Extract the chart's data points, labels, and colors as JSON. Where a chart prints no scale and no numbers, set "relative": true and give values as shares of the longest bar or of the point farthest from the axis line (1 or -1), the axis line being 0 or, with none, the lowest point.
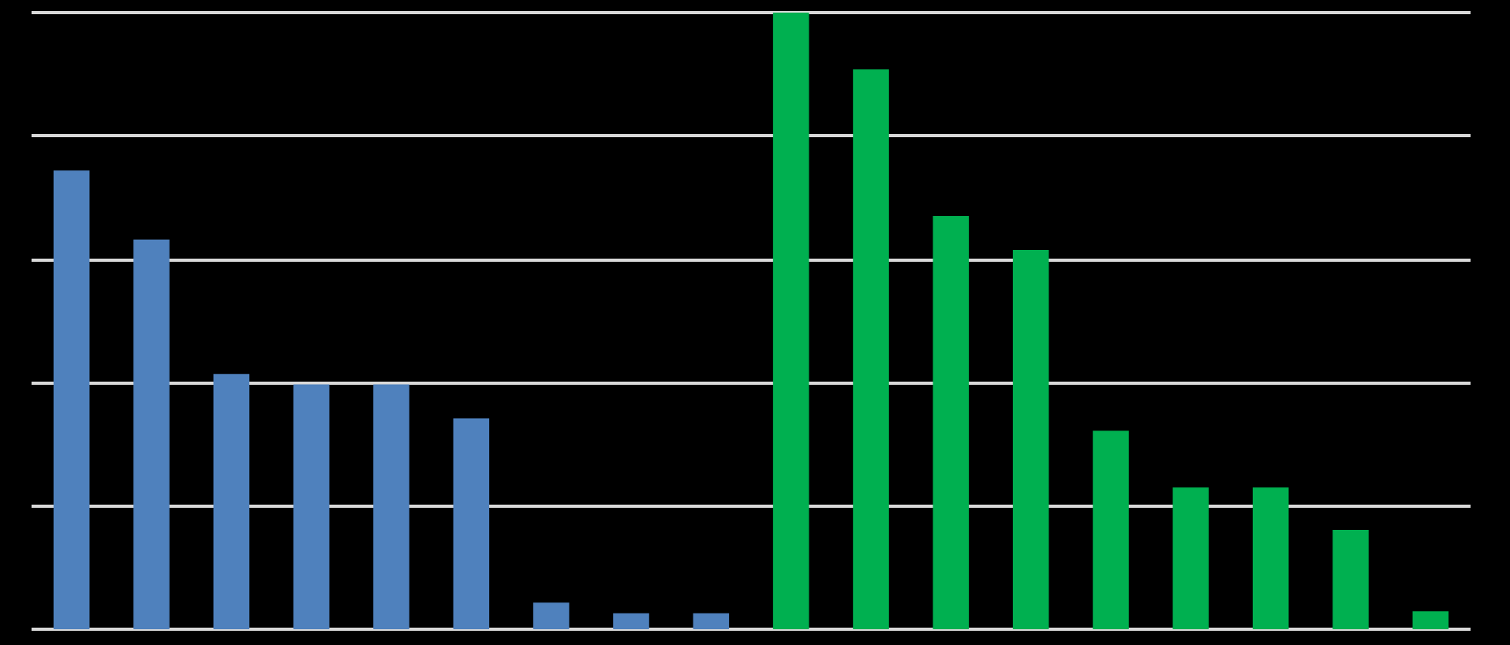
{
  "chart_data": {
    "type": "bar",
    "relative": true,
    "grid": true,
    "categories": [
      null,
      null,
      null,
      null,
      null,
      null,
      null,
      null,
      null,
      null,
      null,
      null,
      null,
      null,
      null,
      null,
      null,
      null
    ],
    "values": [
      0.744,
      0.632,
      0.414,
      0.397,
      0.397,
      0.342,
      0.043,
      0.026,
      0.026,
      1,
      0.908,
      0.67,
      0.615,
      0.322,
      0.23,
      0.23,
      0.161,
      0.029
    ],
    "colors": [
      "#4f81bd",
      "#4f81bd",
      "#4f81bd",
      "#4f81bd",
      "#4f81bd",
      "#4f81bd",
      "#4f81bd",
      "#4f81bd",
      "#4f81bd",
      "#00b050",
      "#00b050",
      "#00b050",
      "#00b050",
      "#00b050",
      "#00b050",
      "#00b050",
      "#00b050",
      "#00b050"
    ]
  }
}
